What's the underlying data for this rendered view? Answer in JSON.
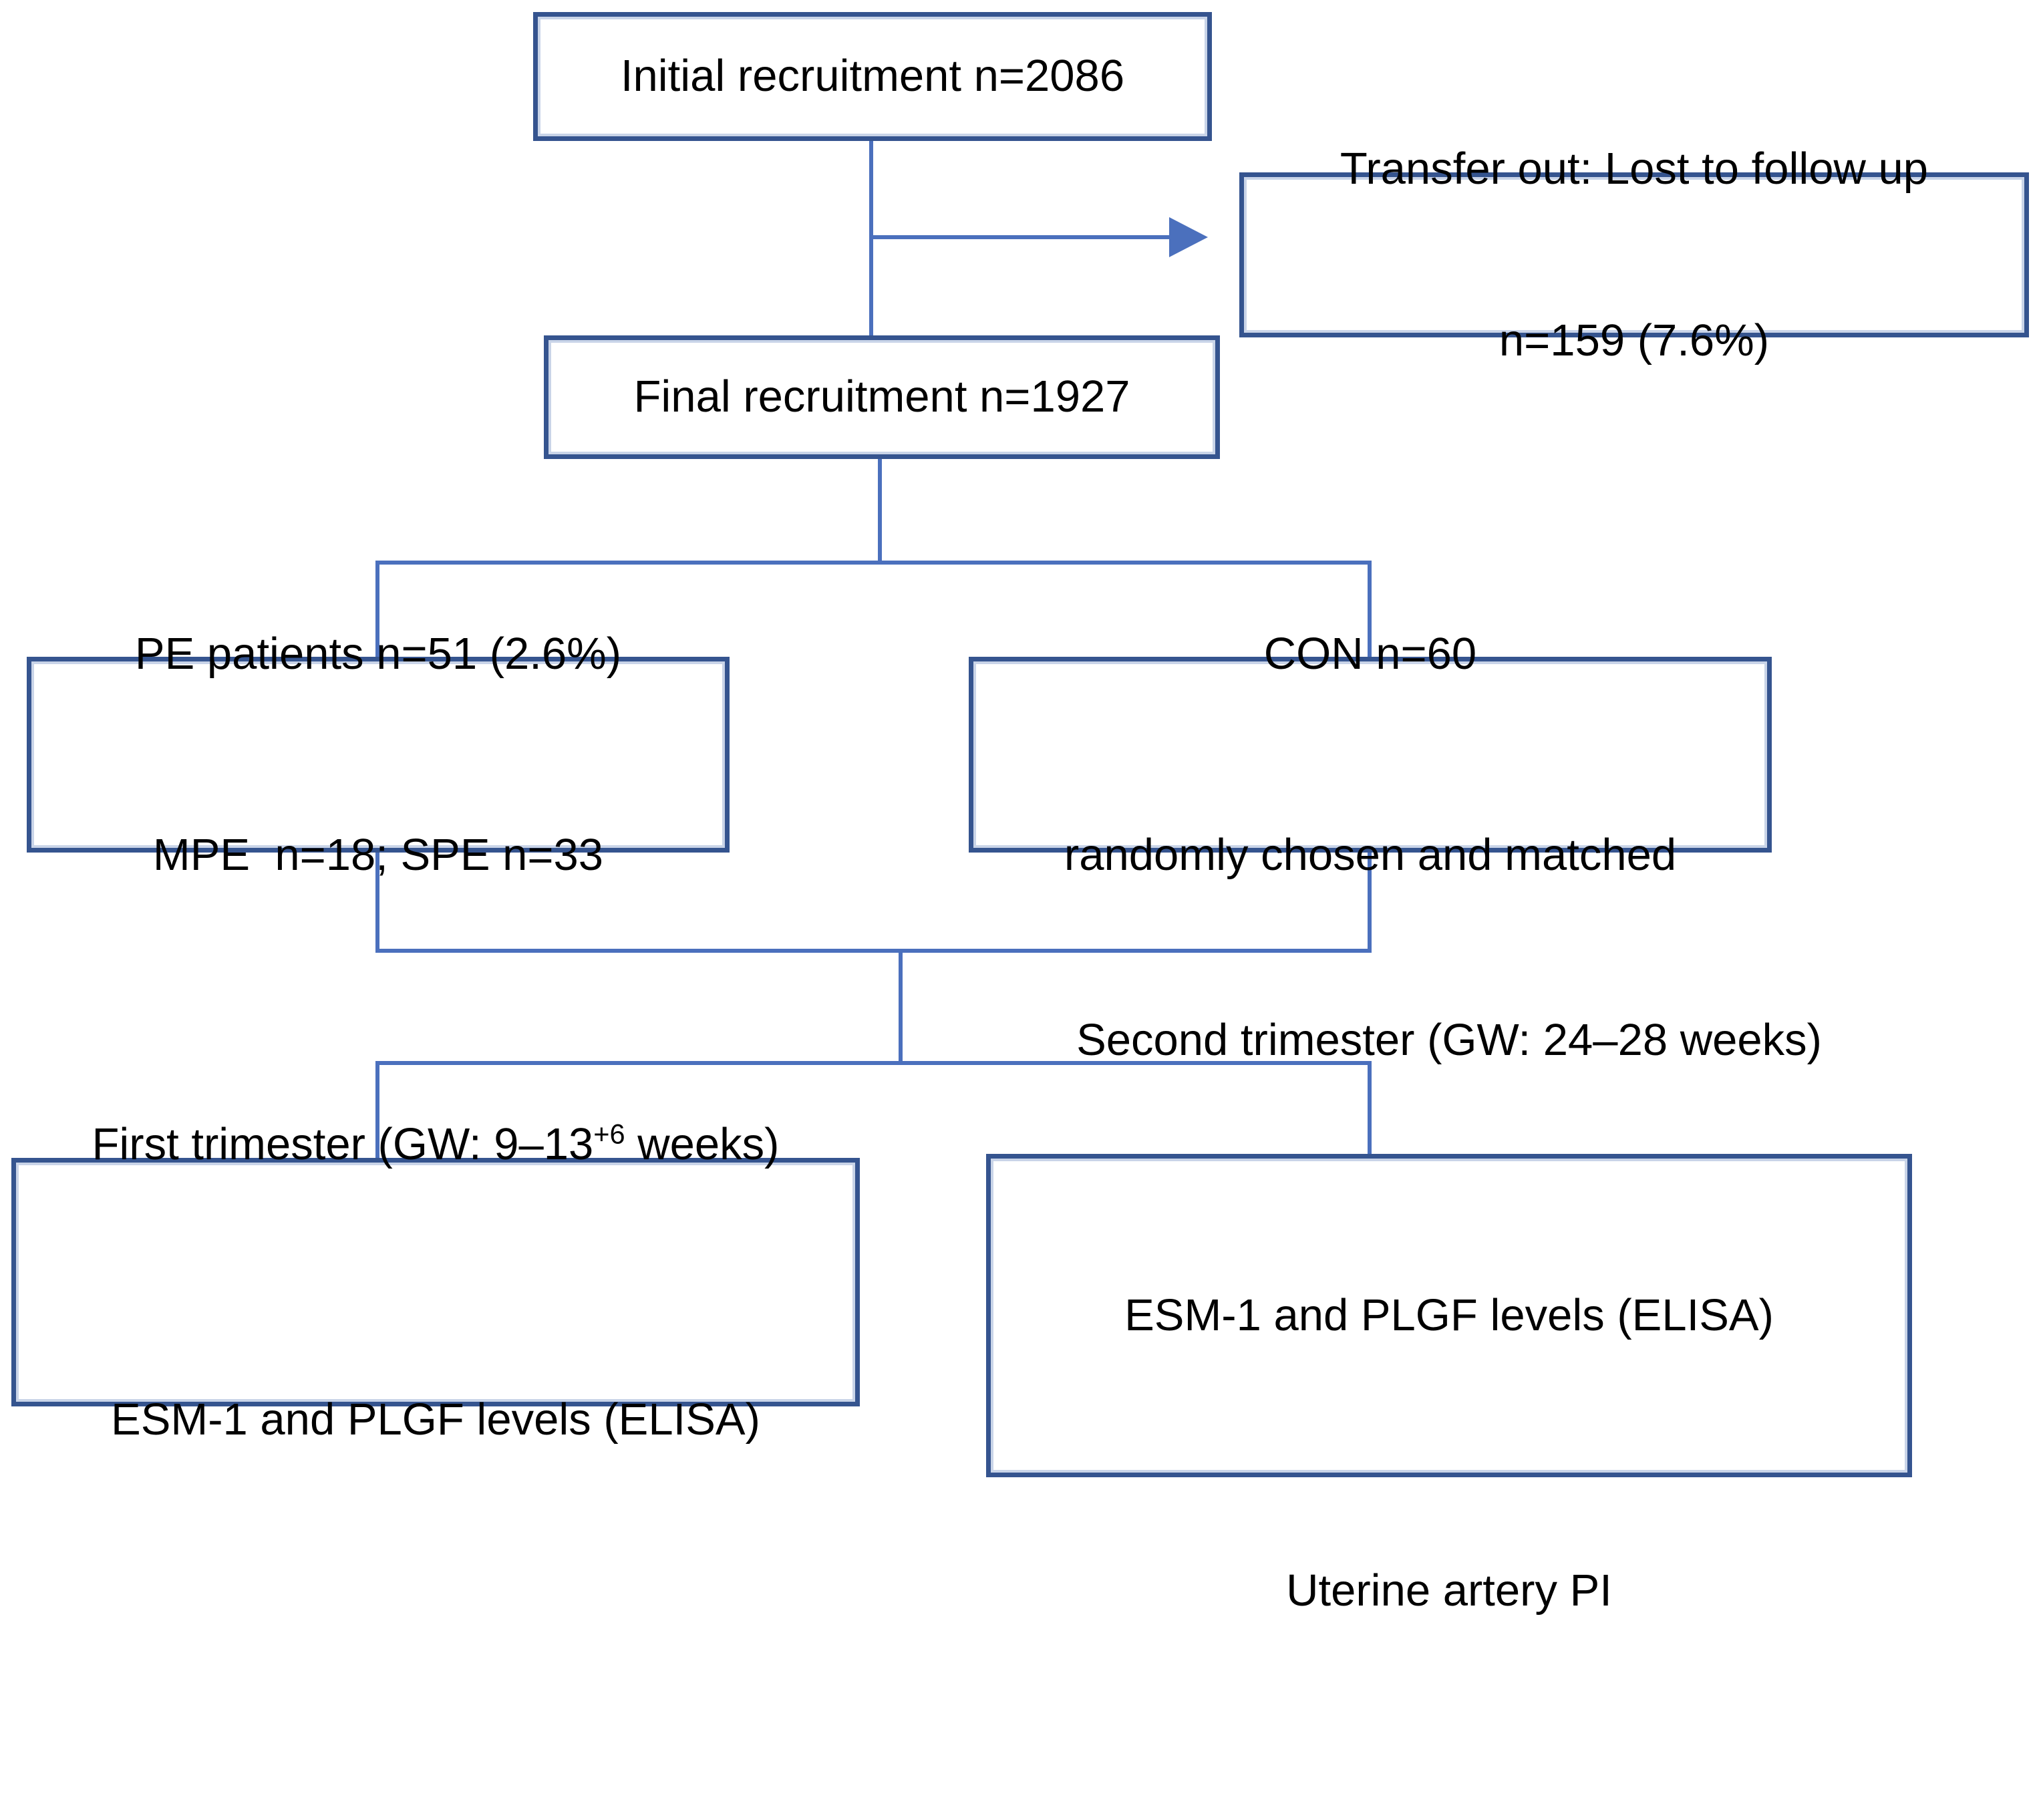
{
  "figure": {
    "type": "flowchart",
    "boxes": {
      "initial": {
        "text": "Initial recruitment n=2086"
      },
      "transfer_out": {
        "lines": [
          "Transfer out: Lost to follow up",
          "n=159 (7.6%)"
        ]
      },
      "final": {
        "text": "Final recruitment n=1927"
      },
      "pe": {
        "lines": [
          "PE patients n=51 (2.6%)",
          "MPE  n=18; SPE n=33"
        ]
      },
      "con": {
        "lines": [
          "CON n=60",
          "randomly chosen and matched"
        ]
      },
      "first_trimester": {
        "line1_pre": "First trimester (GW: 9–13",
        "line1_sup": "+6",
        "line1_post": " weeks)",
        "line2": "ESM-1 and PLGF levels (ELISA)"
      },
      "second_trimester": {
        "lines": [
          "Second trimester (GW: 24–28 weeks)",
          "ESM-1 and PLGF levels (ELISA)",
          "Uterine artery PI"
        ]
      }
    },
    "colors": {
      "box_border": "#35548f",
      "box_border_inner": "#c9d4e8",
      "connector": "#4b70bd",
      "text": "#000000",
      "background": "#ffffff"
    }
  }
}
